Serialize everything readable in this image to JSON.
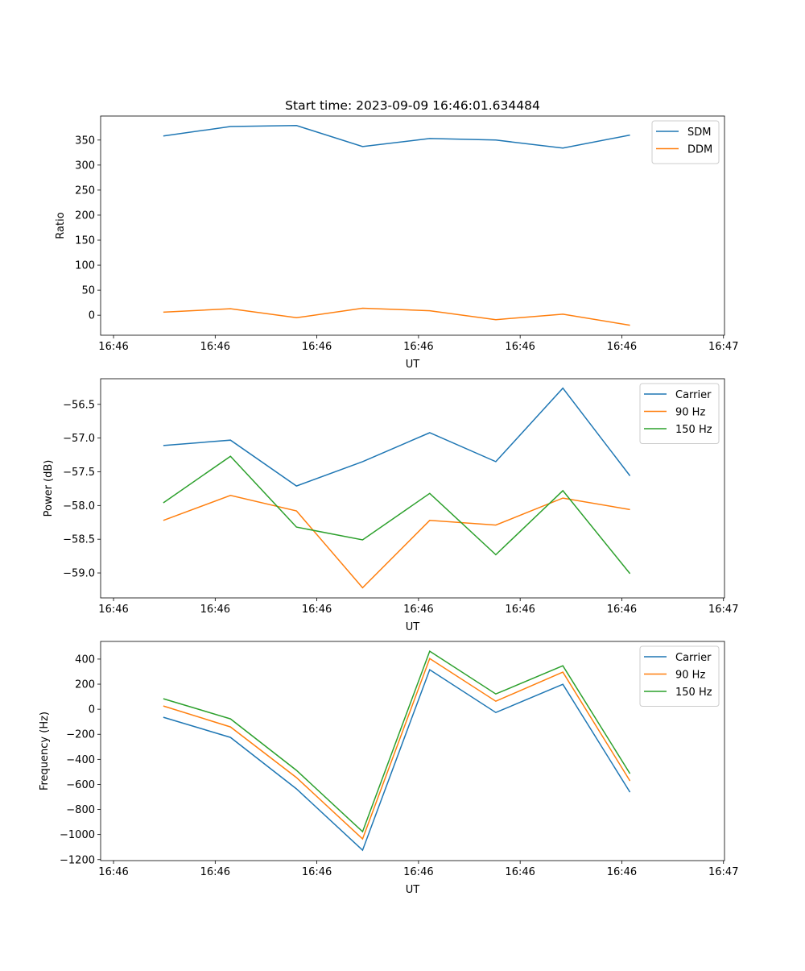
{
  "chart_data": [
    {
      "type": "line",
      "title": "Start time: 2023-09-09 16:46:01.634484",
      "xlabel": "UT",
      "ylabel": "Ratio",
      "x_tick_labels": [
        "16:46",
        "16:46",
        "16:46",
        "16:46",
        "16:46",
        "16:46",
        "16:47"
      ],
      "x": [
        0.49,
        1.15,
        1.8,
        2.45,
        3.11,
        3.76,
        4.42,
        5.08
      ],
      "xlim": [
        -0.127,
        6.01
      ],
      "ylim": [
        -40,
        398
      ],
      "yticks": [
        0,
        50,
        100,
        150,
        200,
        250,
        300,
        350
      ],
      "legend": "top-right",
      "series": [
        {
          "name": "SDM",
          "color": "#1f77b4",
          "values": [
            358,
            377,
            379,
            337,
            353,
            350,
            334,
            360
          ]
        },
        {
          "name": "DDM",
          "color": "#ff7f0e",
          "values": [
            6,
            13,
            -5,
            14,
            9,
            -9,
            2,
            -20
          ]
        }
      ]
    },
    {
      "type": "line",
      "title": "",
      "xlabel": "UT",
      "ylabel": "Power (dB)",
      "x_tick_labels": [
        "16:46",
        "16:46",
        "16:46",
        "16:46",
        "16:46",
        "16:46",
        "16:47"
      ],
      "x": [
        0.49,
        1.15,
        1.8,
        2.45,
        3.11,
        3.76,
        4.42,
        5.08
      ],
      "xlim": [
        -0.127,
        6.01
      ],
      "ylim": [
        -59.37,
        -56.12
      ],
      "yticks": [
        -59.0,
        -58.5,
        -58.0,
        -57.5,
        -57.0,
        -56.5
      ],
      "ytick_labels": [
        "−59.0",
        "−58.5",
        "−58.0",
        "−57.5",
        "−57.0",
        "−56.5"
      ],
      "legend": "top-right",
      "series": [
        {
          "name": "Carrier",
          "color": "#1f77b4",
          "values": [
            -57.11,
            -57.03,
            -57.71,
            -57.35,
            -56.92,
            -57.35,
            -56.26,
            -57.56
          ]
        },
        {
          "name": "90 Hz",
          "color": "#ff7f0e",
          "values": [
            -58.22,
            -57.85,
            -58.08,
            -59.22,
            -58.22,
            -58.29,
            -57.89,
            -58.06
          ]
        },
        {
          "name": "150 Hz",
          "color": "#2ca02c",
          "values": [
            -57.96,
            -57.27,
            -58.32,
            -58.51,
            -57.82,
            -58.73,
            -57.78,
            -59.01
          ]
        }
      ]
    },
    {
      "type": "line",
      "title": "",
      "xlabel": "UT",
      "ylabel": "Frequency (Hz)",
      "x_tick_labels": [
        "16:46",
        "16:46",
        "16:46",
        "16:46",
        "16:46",
        "16:46",
        "16:47"
      ],
      "x": [
        0.49,
        1.15,
        1.8,
        2.45,
        3.11,
        3.76,
        4.42,
        5.08
      ],
      "xlim": [
        -0.127,
        6.01
      ],
      "ylim": [
        -1208,
        541
      ],
      "yticks": [
        -1200,
        -1000,
        -800,
        -600,
        -400,
        -200,
        0,
        200,
        400
      ],
      "ytick_labels": [
        "−1200",
        "−1000",
        "−800",
        "−600",
        "−400",
        "−200",
        "0",
        "200",
        "400"
      ],
      "legend": "top-right",
      "series": [
        {
          "name": "Carrier",
          "color": "#1f77b4",
          "values": [
            -64,
            -225,
            -636,
            -1125,
            315,
            -26,
            199,
            -662
          ]
        },
        {
          "name": "90 Hz",
          "color": "#ff7f0e",
          "values": [
            26,
            -141,
            -546,
            -1035,
            405,
            64,
            296,
            -572
          ]
        },
        {
          "name": "150 Hz",
          "color": "#2ca02c",
          "values": [
            84,
            -77,
            -488,
            -977,
            463,
            122,
            347,
            -514
          ]
        }
      ]
    }
  ]
}
